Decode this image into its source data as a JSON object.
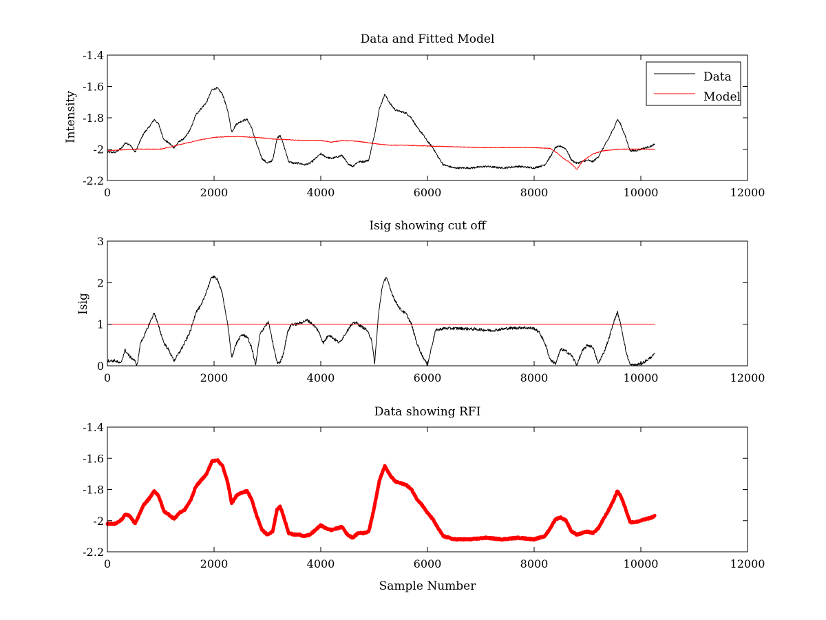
{
  "chart_data": [
    {
      "type": "line",
      "title": "Data and Fitted Model",
      "xlabel": "",
      "ylabel": "Intensity",
      "xlim": [
        0,
        12000
      ],
      "ylim": [
        -2.2,
        -1.4
      ],
      "xticks": [
        0,
        2000,
        4000,
        6000,
        8000,
        10000,
        12000
      ],
      "yticks": [
        -2.2,
        -2,
        -1.8,
        -1.6,
        -1.4
      ],
      "xtick_labels": [
        "0",
        "2000",
        "4000",
        "6000",
        "8000",
        "10000",
        "12000"
      ],
      "ytick_labels": [
        "-2.2",
        "-2",
        "-1.8",
        "-1.6",
        "-1.4"
      ],
      "grid": false,
      "legend": "top-right",
      "series": [
        {
          "name": "Data",
          "color": "#000000",
          "noise": 0.006,
          "x": [
            0,
            150,
            280,
            330,
            420,
            520,
            600,
            680,
            780,
            880,
            960,
            1060,
            1150,
            1250,
            1350,
            1450,
            1560,
            1660,
            1760,
            1860,
            1960,
            2060,
            2160,
            2260,
            2330,
            2420,
            2520,
            2620,
            2700,
            2800,
            2900,
            3000,
            3100,
            3180,
            3240,
            3300,
            3400,
            3500,
            3600,
            3700,
            3800,
            3900,
            4000,
            4100,
            4200,
            4300,
            4400,
            4500,
            4600,
            4700,
            4800,
            4900,
            5000,
            5100,
            5200,
            5300,
            5400,
            5500,
            5600,
            5700,
            5800,
            5900,
            6000,
            6100,
            6200,
            6300,
            6500,
            6800,
            7100,
            7400,
            7700,
            8000,
            8200,
            8300,
            8400,
            8500,
            8600,
            8700,
            8800,
            8900,
            9000,
            9100,
            9200,
            9300,
            9400,
            9500,
            9560,
            9620,
            9700,
            9800,
            9900,
            10000,
            10100,
            10200,
            10260
          ],
          "y": [
            -2.02,
            -2.02,
            -1.99,
            -1.96,
            -1.97,
            -2.02,
            -1.96,
            -1.9,
            -1.86,
            -1.81,
            -1.84,
            -1.94,
            -1.96,
            -1.99,
            -1.95,
            -1.93,
            -1.87,
            -1.78,
            -1.74,
            -1.7,
            -1.62,
            -1.61,
            -1.65,
            -1.76,
            -1.89,
            -1.84,
            -1.82,
            -1.81,
            -1.86,
            -1.97,
            -2.06,
            -2.09,
            -2.07,
            -1.93,
            -1.91,
            -1.97,
            -2.08,
            -2.09,
            -2.09,
            -2.1,
            -2.09,
            -2.06,
            -2.03,
            -2.05,
            -2.06,
            -2.05,
            -2.04,
            -2.09,
            -2.11,
            -2.08,
            -2.08,
            -2.07,
            -1.92,
            -1.74,
            -1.65,
            -1.71,
            -1.75,
            -1.76,
            -1.77,
            -1.8,
            -1.86,
            -1.9,
            -1.95,
            -1.99,
            -2.05,
            -2.1,
            -2.12,
            -2.12,
            -2.11,
            -2.12,
            -2.11,
            -2.12,
            -2.1,
            -2.05,
            -1.99,
            -1.98,
            -2.0,
            -2.07,
            -2.09,
            -2.08,
            -2.07,
            -2.08,
            -2.05,
            -1.99,
            -1.93,
            -1.86,
            -1.81,
            -1.84,
            -1.91,
            -2.01,
            -2.01,
            -2.0,
            -1.99,
            -1.98,
            -1.97
          ]
        },
        {
          "name": "Model",
          "color": "#ff0000",
          "noise": 0.002,
          "x": [
            0,
            500,
            1000,
            1250,
            1500,
            1750,
            2000,
            2250,
            2500,
            2800,
            3100,
            3400,
            3700,
            4000,
            4200,
            4400,
            4700,
            5000,
            5300,
            5600,
            6000,
            6500,
            7000,
            7500,
            8000,
            8300,
            8450,
            8550,
            8650,
            8750,
            8800,
            8900,
            9100,
            9300,
            9600,
            10000,
            10260
          ],
          "y": [
            -2.01,
            -2.0,
            -2.0,
            -1.98,
            -1.96,
            -1.94,
            -1.925,
            -1.92,
            -1.92,
            -1.925,
            -1.935,
            -1.94,
            -1.945,
            -1.945,
            -1.955,
            -1.945,
            -1.95,
            -1.965,
            -1.975,
            -1.975,
            -1.98,
            -1.985,
            -1.99,
            -1.99,
            -1.99,
            -1.995,
            -2.03,
            -2.06,
            -2.08,
            -2.11,
            -2.13,
            -2.08,
            -2.03,
            -2.01,
            -2.0,
            -2.0,
            -2.0
          ]
        }
      ]
    },
    {
      "type": "line",
      "title": "Isig showing cut off",
      "xlabel": "",
      "ylabel": "Isig",
      "xlim": [
        0,
        12000
      ],
      "ylim": [
        0,
        3
      ],
      "xticks": [
        0,
        2000,
        4000,
        6000,
        8000,
        10000,
        12000
      ],
      "yticks": [
        0,
        1,
        2,
        3
      ],
      "xtick_labels": [
        "0",
        "2000",
        "4000",
        "6000",
        "8000",
        "10000",
        "12000"
      ],
      "ytick_labels": [
        "0",
        "1",
        "2",
        "3"
      ],
      "grid": false,
      "series": [
        {
          "color": "#000000",
          "noise": 0.035,
          "x": [
            0,
            150,
            250,
            330,
            420,
            500,
            560,
            620,
            700,
            800,
            880,
            960,
            1060,
            1150,
            1250,
            1350,
            1450,
            1560,
            1660,
            1760,
            1860,
            1960,
            2060,
            2160,
            2260,
            2330,
            2420,
            2520,
            2620,
            2700,
            2780,
            2860,
            2950,
            3020,
            3100,
            3180,
            3240,
            3300,
            3380,
            3450,
            3550,
            3650,
            3750,
            3850,
            3950,
            4050,
            4150,
            4250,
            4350,
            4450,
            4550,
            4650,
            4750,
            4850,
            4950,
            5010,
            5080,
            5150,
            5230,
            5300,
            5400,
            5500,
            5600,
            5700,
            5800,
            5900,
            6000,
            6050,
            6150,
            6300,
            6600,
            6900,
            7200,
            7500,
            7800,
            8000,
            8100,
            8200,
            8300,
            8400,
            8500,
            8600,
            8700,
            8800,
            8900,
            9000,
            9100,
            9200,
            9300,
            9400,
            9480,
            9560,
            9640,
            9720,
            9800,
            9900,
            10000,
            10100,
            10200,
            10260
          ],
          "y": [
            0.12,
            0.12,
            0.05,
            0.38,
            0.22,
            0.14,
            0.02,
            0.55,
            0.75,
            1.05,
            1.28,
            0.95,
            0.55,
            0.38,
            0.12,
            0.32,
            0.55,
            0.85,
            1.3,
            1.45,
            1.8,
            2.15,
            2.1,
            1.7,
            0.95,
            0.2,
            0.55,
            0.75,
            0.7,
            0.45,
            0.02,
            0.75,
            0.95,
            1.05,
            0.55,
            0.08,
            0.08,
            0.3,
            0.82,
            1.0,
            1.0,
            1.05,
            1.1,
            1.0,
            0.85,
            0.55,
            0.75,
            0.65,
            0.55,
            0.75,
            0.95,
            1.05,
            0.95,
            0.88,
            0.65,
            0.05,
            1.2,
            1.9,
            2.15,
            1.85,
            1.55,
            1.35,
            1.25,
            1.0,
            0.55,
            0.25,
            0.02,
            0.3,
            0.85,
            0.9,
            0.9,
            0.88,
            0.85,
            0.9,
            0.92,
            0.9,
            0.8,
            0.55,
            0.15,
            0.05,
            0.4,
            0.35,
            0.25,
            0.02,
            0.35,
            0.5,
            0.45,
            0.05,
            0.3,
            0.65,
            1.0,
            1.3,
            0.9,
            0.35,
            0.02,
            0.02,
            0.05,
            0.12,
            0.22,
            0.28
          ]
        },
        {
          "color": "#ff0000",
          "noise": 0,
          "x": [
            0,
            10260
          ],
          "y": [
            1,
            1
          ]
        }
      ]
    },
    {
      "type": "line",
      "title": "Data showing RFI",
      "xlabel": "Sample Number",
      "ylabel": "",
      "xlim": [
        0,
        12000
      ],
      "ylim": [
        -2.2,
        -1.4
      ],
      "xticks": [
        0,
        2000,
        4000,
        6000,
        8000,
        10000,
        12000
      ],
      "yticks": [
        -2.2,
        -2,
        -1.8,
        -1.6,
        -1.4
      ],
      "xtick_labels": [
        "0",
        "2000",
        "4000",
        "6000",
        "8000",
        "10000",
        "12000"
      ],
      "ytick_labels": [
        "-2.2",
        "-2",
        "-1.8",
        "-1.6",
        "-1.4"
      ],
      "grid": false,
      "series": [
        {
          "color": "#ff0000",
          "noise": 0.004,
          "thick": true,
          "x": [
            0,
            150,
            280,
            330,
            420,
            520,
            600,
            680,
            780,
            880,
            960,
            1060,
            1150,
            1250,
            1350,
            1450,
            1560,
            1660,
            1760,
            1860,
            1960,
            2060,
            2160,
            2260,
            2330,
            2420,
            2520,
            2620,
            2700,
            2800,
            2900,
            3000,
            3100,
            3180,
            3240,
            3300,
            3400,
            3500,
            3600,
            3700,
            3800,
            3900,
            4000,
            4100,
            4200,
            4300,
            4400,
            4500,
            4600,
            4700,
            4800,
            4900,
            5000,
            5100,
            5200,
            5300,
            5400,
            5500,
            5600,
            5700,
            5800,
            5900,
            6000,
            6100,
            6200,
            6300,
            6500,
            6800,
            7100,
            7400,
            7700,
            8000,
            8200,
            8300,
            8400,
            8500,
            8600,
            8700,
            8800,
            8900,
            9000,
            9100,
            9200,
            9300,
            9400,
            9500,
            9560,
            9620,
            9700,
            9800,
            9900,
            10000,
            10100,
            10200,
            10260
          ],
          "y": [
            -2.02,
            -2.02,
            -1.99,
            -1.96,
            -1.97,
            -2.02,
            -1.96,
            -1.9,
            -1.86,
            -1.81,
            -1.84,
            -1.94,
            -1.96,
            -1.99,
            -1.95,
            -1.93,
            -1.87,
            -1.78,
            -1.74,
            -1.7,
            -1.62,
            -1.61,
            -1.65,
            -1.76,
            -1.89,
            -1.84,
            -1.82,
            -1.81,
            -1.86,
            -1.97,
            -2.06,
            -2.09,
            -2.07,
            -1.93,
            -1.91,
            -1.97,
            -2.08,
            -2.09,
            -2.09,
            -2.1,
            -2.09,
            -2.06,
            -2.03,
            -2.05,
            -2.06,
            -2.05,
            -2.04,
            -2.09,
            -2.11,
            -2.08,
            -2.08,
            -2.07,
            -1.92,
            -1.74,
            -1.65,
            -1.71,
            -1.75,
            -1.76,
            -1.77,
            -1.8,
            -1.86,
            -1.9,
            -1.95,
            -1.99,
            -2.05,
            -2.1,
            -2.12,
            -2.12,
            -2.11,
            -2.12,
            -2.11,
            -2.12,
            -2.1,
            -2.05,
            -1.99,
            -1.98,
            -2.0,
            -2.07,
            -2.09,
            -2.08,
            -2.07,
            -2.08,
            -2.05,
            -1.99,
            -1.93,
            -1.86,
            -1.81,
            -1.84,
            -1.91,
            -2.01,
            -2.01,
            -2.0,
            -1.99,
            -1.98,
            -1.97
          ]
        }
      ]
    }
  ]
}
